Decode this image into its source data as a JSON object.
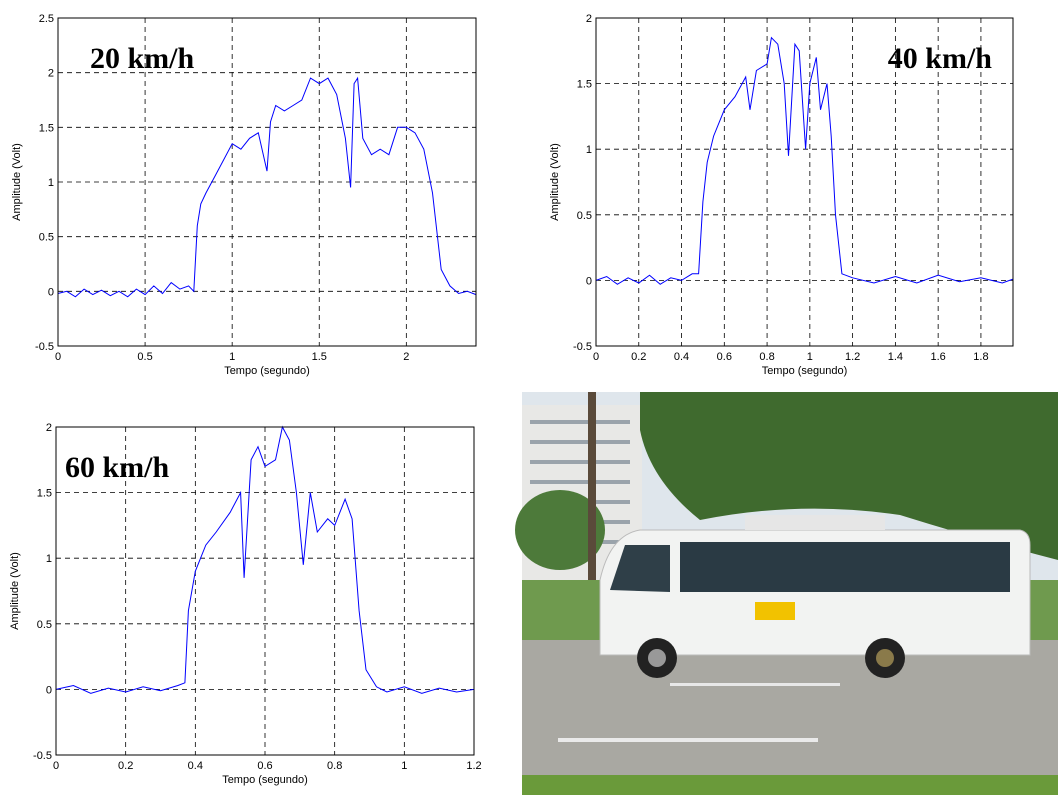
{
  "chart_data": [
    {
      "type": "line",
      "annotation": "20 km/h",
      "xlabel": "Tempo (segundo)",
      "ylabel": "Amplitude (Volt)",
      "xlim": [
        0,
        2.4
      ],
      "ylim": [
        -0.5,
        2.5
      ],
      "xticks": [
        0,
        0.5,
        1,
        1.5,
        2
      ],
      "yticks": [
        -0.5,
        0,
        0.5,
        1,
        1.5,
        2,
        2.5
      ],
      "grid": true,
      "color": "#0000ff",
      "x": [
        0,
        0.05,
        0.1,
        0.15,
        0.2,
        0.25,
        0.3,
        0.35,
        0.4,
        0.45,
        0.5,
        0.55,
        0.6,
        0.65,
        0.7,
        0.75,
        0.78,
        0.8,
        0.82,
        0.85,
        0.9,
        0.95,
        1.0,
        1.05,
        1.1,
        1.15,
        1.2,
        1.22,
        1.25,
        1.3,
        1.35,
        1.4,
        1.45,
        1.5,
        1.55,
        1.6,
        1.65,
        1.68,
        1.7,
        1.72,
        1.75,
        1.8,
        1.85,
        1.9,
        1.95,
        2.0,
        2.05,
        2.1,
        2.15,
        2.2,
        2.25,
        2.3,
        2.35,
        2.4
      ],
      "values": [
        -0.02,
        0.0,
        -0.05,
        0.02,
        -0.03,
        0.01,
        -0.04,
        0.0,
        -0.05,
        0.02,
        -0.03,
        0.05,
        -0.02,
        0.08,
        0.02,
        0.05,
        0.0,
        0.6,
        0.8,
        0.9,
        1.05,
        1.2,
        1.35,
        1.3,
        1.4,
        1.45,
        1.1,
        1.55,
        1.7,
        1.65,
        1.7,
        1.75,
        1.95,
        1.9,
        1.95,
        1.8,
        1.4,
        0.95,
        1.9,
        1.95,
        1.4,
        1.25,
        1.3,
        1.25,
        1.5,
        1.5,
        1.45,
        1.3,
        0.9,
        0.2,
        0.05,
        -0.02,
        0.0,
        -0.03
      ]
    },
    {
      "type": "line",
      "annotation": "40 km/h",
      "xlabel": "Tempo (segundo)",
      "ylabel": "Amplitude (Volt)",
      "xlim": [
        0,
        1.95
      ],
      "ylim": [
        -0.5,
        2
      ],
      "xticks": [
        0,
        0.2,
        0.4,
        0.6,
        0.8,
        1,
        1.2,
        1.4,
        1.6,
        1.8
      ],
      "yticks": [
        -0.5,
        0,
        0.5,
        1,
        1.5,
        2
      ],
      "grid": true,
      "color": "#0000ff",
      "x": [
        0,
        0.05,
        0.1,
        0.15,
        0.2,
        0.25,
        0.3,
        0.35,
        0.4,
        0.45,
        0.48,
        0.5,
        0.52,
        0.55,
        0.6,
        0.65,
        0.7,
        0.72,
        0.75,
        0.8,
        0.82,
        0.85,
        0.88,
        0.9,
        0.93,
        0.95,
        0.98,
        1.0,
        1.03,
        1.05,
        1.08,
        1.1,
        1.12,
        1.15,
        1.2,
        1.3,
        1.4,
        1.5,
        1.6,
        1.7,
        1.8,
        1.9,
        1.95
      ],
      "values": [
        0.0,
        0.03,
        -0.03,
        0.02,
        -0.02,
        0.04,
        -0.03,
        0.02,
        0.0,
        0.05,
        0.05,
        0.6,
        0.9,
        1.1,
        1.3,
        1.4,
        1.55,
        1.3,
        1.6,
        1.65,
        1.85,
        1.8,
        1.5,
        0.95,
        1.8,
        1.75,
        1.0,
        1.5,
        1.7,
        1.3,
        1.5,
        1.1,
        0.5,
        0.05,
        0.02,
        -0.02,
        0.03,
        -0.02,
        0.04,
        -0.01,
        0.02,
        -0.02,
        0.01
      ]
    },
    {
      "type": "line",
      "annotation": "60 km/h",
      "xlabel": "Tempo (segundo)",
      "ylabel": "Amplitude (Volt)",
      "xlim": [
        0,
        1.2
      ],
      "ylim": [
        -0.5,
        2
      ],
      "xticks": [
        0,
        0.2,
        0.4,
        0.6,
        0.8,
        1,
        1.2
      ],
      "yticks": [
        -0.5,
        0,
        0.5,
        1,
        1.5,
        2
      ],
      "grid": true,
      "color": "#0000ff",
      "x": [
        0,
        0.05,
        0.1,
        0.15,
        0.2,
        0.25,
        0.3,
        0.35,
        0.37,
        0.38,
        0.4,
        0.43,
        0.46,
        0.5,
        0.53,
        0.54,
        0.56,
        0.58,
        0.6,
        0.63,
        0.65,
        0.67,
        0.69,
        0.71,
        0.73,
        0.75,
        0.78,
        0.8,
        0.83,
        0.85,
        0.87,
        0.89,
        0.92,
        0.95,
        1.0,
        1.05,
        1.1,
        1.15,
        1.2
      ],
      "values": [
        0.0,
        0.03,
        -0.03,
        0.01,
        -0.02,
        0.02,
        -0.01,
        0.03,
        0.05,
        0.6,
        0.9,
        1.1,
        1.2,
        1.35,
        1.5,
        0.85,
        1.75,
        1.85,
        1.7,
        1.75,
        2.0,
        1.9,
        1.5,
        0.95,
        1.5,
        1.2,
        1.3,
        1.25,
        1.45,
        1.3,
        0.6,
        0.15,
        0.02,
        -0.02,
        0.02,
        -0.03,
        0.01,
        -0.02,
        0.0
      ]
    }
  ]
}
